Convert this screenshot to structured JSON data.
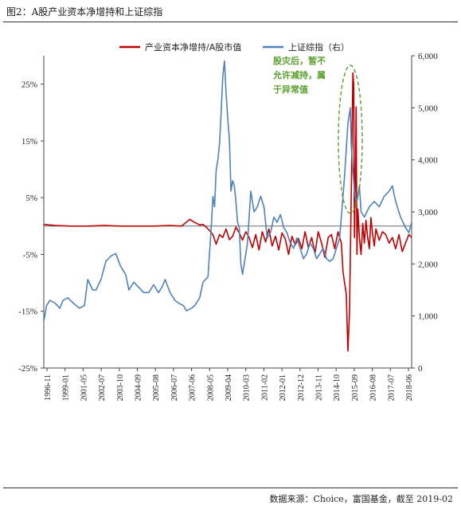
{
  "page": {
    "title": "图2：A股产业资本净增持和上证综指",
    "source": "数据来源：Choice，富国基金，截至 2019-02"
  },
  "chart_data": {
    "type": "line",
    "legend_position": "top",
    "grid": false,
    "x_tick_labels": [
      "1996-11",
      "1999-01",
      "2001-05",
      "2002-07",
      "2003-10",
      "2004-09",
      "2005-08",
      "2006-07",
      "2007-06",
      "2008-05",
      "2009-04",
      "2010-03",
      "2011-02",
      "2012-01",
      "2012-12",
      "2013-11",
      "2014-10",
      "2015-09",
      "2016-08",
      "2017-07",
      "2018-06"
    ],
    "x_range": [
      1996.83,
      2019.17
    ],
    "left_axis": {
      "ticks": [
        "25%",
        "15%",
        "5%",
        "-5%",
        "-15%",
        "-25%"
      ],
      "tick_values": [
        25,
        15,
        5,
        -5,
        -15,
        -25
      ],
      "ylim": [
        -25,
        30
      ],
      "unit": "%"
    },
    "right_axis": {
      "ticks": [
        "6,000",
        "5,000",
        "4,000",
        "3,000",
        "2,000",
        "1,000",
        "0"
      ],
      "tick_values": [
        6000,
        5000,
        4000,
        3000,
        2000,
        1000,
        0
      ],
      "ylim": [
        0,
        6000
      ]
    },
    "series": [
      {
        "name": "产业资本净增持/A股市值",
        "axis": "left",
        "color": "#c00000",
        "x": [
          1996.83,
          1997.5,
          1998.5,
          1999.5,
          2000.5,
          2001.5,
          2002.5,
          2003.5,
          2004.5,
          2005.2,
          2005.5,
          2005.7,
          2005.9,
          2006.1,
          2006.3,
          2006.5,
          2006.7,
          2006.9,
          2007.1,
          2007.3,
          2007.5,
          2007.7,
          2007.9,
          2008.1,
          2008.3,
          2008.5,
          2008.7,
          2008.9,
          2009.1,
          2009.3,
          2009.5,
          2009.7,
          2009.9,
          2010.1,
          2010.3,
          2010.5,
          2010.7,
          2010.9,
          2011.1,
          2011.3,
          2011.5,
          2011.7,
          2011.9,
          2012.1,
          2012.3,
          2012.5,
          2012.7,
          2012.9,
          2013.1,
          2013.3,
          2013.5,
          2013.7,
          2013.9,
          2014.1,
          2014.3,
          2014.5,
          2014.7,
          2014.9,
          2015.0,
          2015.1,
          2015.2,
          2015.3,
          2015.4,
          2015.5,
          2015.55,
          2015.6,
          2015.65,
          2015.7,
          2015.75,
          2015.8,
          2015.85,
          2015.9,
          2016.0,
          2016.1,
          2016.2,
          2016.3,
          2016.4,
          2016.5,
          2016.6,
          2016.7,
          2016.8,
          2016.9,
          2017.0,
          2017.2,
          2017.4,
          2017.6,
          2017.8,
          2018.0,
          2018.2,
          2018.4,
          2018.6,
          2018.8,
          2019.0,
          2019.17
        ],
        "values": [
          0.3,
          0.1,
          0.0,
          0.0,
          0.1,
          0.0,
          0.0,
          0.0,
          0.1,
          0.0,
          0.7,
          1.2,
          0.8,
          0.5,
          0.2,
          0.3,
          -0.2,
          -0.8,
          -1.5,
          -3.2,
          -1.5,
          -2.0,
          -0.5,
          -2.4,
          -1.8,
          -0.2,
          -1.2,
          -2.5,
          -1.0,
          -2.0,
          -3.8,
          -1.5,
          -4.2,
          -1.0,
          -2.8,
          -0.5,
          -3.5,
          -1.8,
          -4.2,
          -1.2,
          -2.3,
          -5.0,
          -1.8,
          -3.3,
          -2.2,
          -4.0,
          -1.0,
          -3.8,
          -2.0,
          -4.8,
          -1.0,
          -3.0,
          -5.5,
          -2.0,
          -1.5,
          -4.0,
          -1.0,
          -3.0,
          -8.0,
          -10.0,
          -12.0,
          -22.0,
          -15.0,
          5.0,
          15.0,
          27.0,
          25.0,
          -2.0,
          8.0,
          21.0,
          -5.0,
          3.0,
          -2.0,
          -5.0,
          0.5,
          -3.0,
          1.0,
          -2.0,
          -4.0,
          1.5,
          -1.5,
          -3.5,
          -0.5,
          -2.5,
          -1.0,
          -1.5,
          -3.0,
          -2.0,
          -4.0,
          -1.5,
          -4.5,
          -3.0,
          -1.5,
          -2.0
        ]
      },
      {
        "name": "上证综指（右）",
        "axis": "right",
        "color": "#4f81bd",
        "x": [
          1996.83,
          1997.0,
          1997.2,
          1997.5,
          1997.8,
          1998.0,
          1998.3,
          1998.6,
          1999.0,
          1999.3,
          1999.5,
          1999.8,
          2000.0,
          2000.3,
          2000.6,
          2000.9,
          2001.2,
          2001.5,
          2001.8,
          2002.0,
          2002.3,
          2002.6,
          2002.9,
          2003.2,
          2003.5,
          2003.8,
          2004.0,
          2004.2,
          2004.5,
          2004.8,
          2005.0,
          2005.3,
          2005.5,
          2005.8,
          2006.0,
          2006.3,
          2006.5,
          2006.8,
          2007.0,
          2007.1,
          2007.2,
          2007.3,
          2007.4,
          2007.5,
          2007.6,
          2007.7,
          2007.8,
          2007.9,
          2008.0,
          2008.1,
          2008.2,
          2008.3,
          2008.4,
          2008.5,
          2008.6,
          2008.7,
          2008.8,
          2008.9,
          2009.0,
          2009.2,
          2009.4,
          2009.6,
          2009.8,
          2010.0,
          2010.2,
          2010.4,
          2010.6,
          2010.8,
          2011.0,
          2011.2,
          2011.4,
          2011.6,
          2011.8,
          2012.0,
          2012.2,
          2012.4,
          2012.6,
          2012.8,
          2013.0,
          2013.2,
          2013.4,
          2013.6,
          2013.8,
          2014.0,
          2014.2,
          2014.4,
          2014.6,
          2014.8,
          2014.9,
          2015.0,
          2015.1,
          2015.2,
          2015.3,
          2015.4,
          2015.45,
          2015.5,
          2015.6,
          2015.7,
          2015.8,
          2015.9,
          2016.0,
          2016.1,
          2016.3,
          2016.6,
          2016.9,
          2017.2,
          2017.5,
          2017.8,
          2018.0,
          2018.2,
          2018.5,
          2018.8,
          2019.0,
          2019.17
        ],
        "values": [
          900,
          1200,
          1300,
          1250,
          1150,
          1300,
          1350,
          1250,
          1150,
          1200,
          1700,
          1500,
          1500,
          1700,
          2050,
          2150,
          2200,
          1950,
          1800,
          1500,
          1650,
          1550,
          1450,
          1450,
          1600,
          1450,
          1550,
          1700,
          1450,
          1300,
          1250,
          1200,
          1100,
          1150,
          1200,
          1350,
          1650,
          1750,
          2700,
          3300,
          3100,
          3800,
          4000,
          4300,
          4900,
          5600,
          5900,
          5300,
          4800,
          4400,
          3400,
          3600,
          3500,
          3200,
          2800,
          2700,
          2000,
          1800,
          2000,
          2400,
          3400,
          3000,
          3100,
          3300,
          3100,
          2500,
          2600,
          2900,
          2800,
          2950,
          2700,
          2600,
          2400,
          2300,
          2500,
          2300,
          2100,
          2200,
          2400,
          2300,
          2100,
          2200,
          2300,
          2100,
          2050,
          2100,
          2300,
          2500,
          2900,
          3300,
          3700,
          4200,
          4700,
          4900,
          5000,
          4300,
          3800,
          3400,
          3200,
          3300,
          3500,
          3000,
          2900,
          3100,
          3200,
          3100,
          3300,
          3400,
          3500,
          3200,
          2900,
          2700,
          2600,
          2800
        ]
      }
    ],
    "annotation": {
      "text_lines": [
        "股灾后，暂不",
        "允许减持，属",
        "于异常值"
      ]
    }
  }
}
